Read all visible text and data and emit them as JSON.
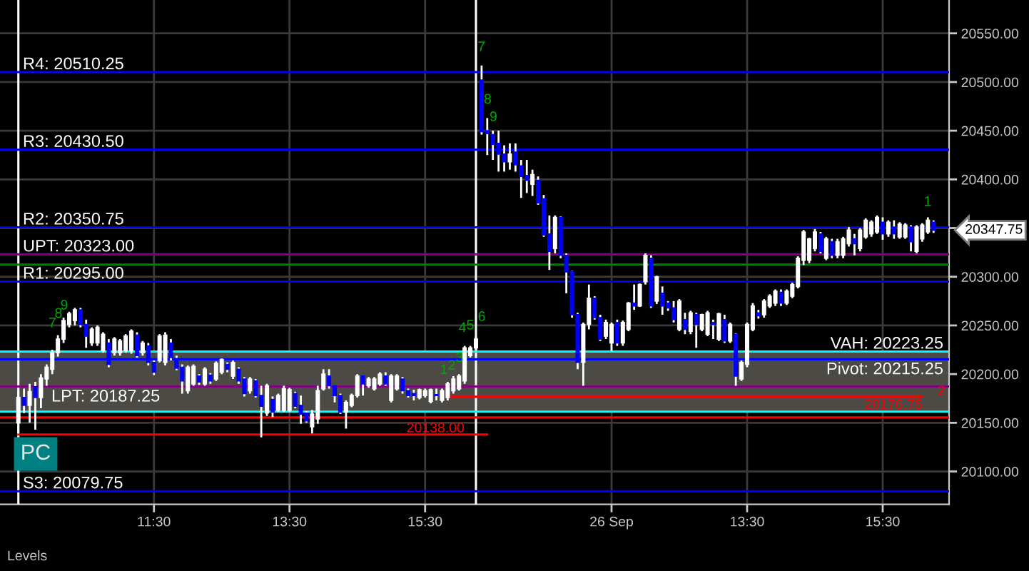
{
  "chart_data": {
    "type": "candlestick",
    "categories": [
      null,
      null,
      null,
      null,
      null,
      null,
      null,
      null,
      null,
      null,
      null,
      null,
      null,
      null,
      null,
      null,
      null,
      null,
      null,
      null,
      null,
      null,
      null,
      null,
      "11:30",
      null,
      null,
      null,
      null,
      null,
      null,
      null,
      null,
      null,
      null,
      null,
      null,
      null,
      null,
      null,
      null,
      null,
      null,
      null,
      null,
      null,
      null,
      null,
      "13:30",
      null,
      null,
      null,
      null,
      null,
      null,
      null,
      null,
      null,
      null,
      null,
      null,
      null,
      null,
      null,
      null,
      null,
      null,
      null,
      null,
      null,
      null,
      null,
      "15:30",
      null,
      null,
      null,
      null,
      null,
      null,
      null,
      null,
      null,
      null,
      null,
      null,
      null,
      null,
      null,
      null,
      null,
      null,
      null,
      null,
      null,
      null,
      null,
      null,
      null,
      null,
      null,
      null,
      null,
      null,
      null,
      null,
      "26 Sep",
      null,
      null,
      null,
      null,
      null,
      null,
      null,
      null,
      null,
      null,
      null,
      null,
      null,
      null,
      null,
      null,
      null,
      null,
      null,
      null,
      null,
      null,
      null,
      "13:30",
      null,
      null,
      null,
      null,
      null,
      null,
      null,
      null,
      null,
      null,
      null,
      null,
      null,
      null,
      null,
      null,
      null,
      null,
      null,
      null,
      null,
      null,
      null,
      "15:30",
      null,
      null,
      null,
      null,
      null,
      null,
      null,
      null,
      null
    ],
    "series": [
      {
        "color": "#ffffff",
        "ohlc": [
          [
            20150,
            20183,
            20139,
            20176
          ],
          [
            20176,
            20185,
            20160,
            20168
          ],
          [
            20168,
            20190,
            20150,
            20182
          ],
          [
            20187,
            20192,
            20143,
            20176
          ],
          [
            20176,
            20200,
            20165,
            20196
          ],
          [
            20195,
            20210,
            20188,
            20207
          ],
          [
            20205,
            20225,
            20200,
            20222
          ],
          [
            20222,
            20240,
            20218,
            20236
          ],
          [
            20236,
            20258,
            20232,
            20255
          ],
          [
            20251,
            20264,
            20248,
            20262
          ],
          [
            20255,
            20268,
            20250,
            20266
          ],
          [
            20266,
            20268,
            20248,
            20251
          ],
          [
            20251,
            20256,
            20227,
            20239
          ],
          [
            20232,
            20248,
            20229,
            20246
          ],
          [
            20232,
            20250,
            20229,
            20248
          ],
          [
            20224,
            20243,
            20222,
            20241
          ],
          [
            20232,
            20236,
            20207,
            20210
          ],
          [
            20222,
            20238,
            20219,
            20236
          ],
          [
            20222,
            20236,
            20219,
            20234
          ],
          [
            20224,
            20241,
            20222,
            20239
          ],
          [
            20224,
            20246,
            20221,
            20244
          ],
          [
            20240,
            20243,
            20217,
            20219
          ],
          [
            20222,
            20234,
            20219,
            20232
          ],
          [
            20229,
            20232,
            20209,
            20212
          ],
          [
            20212,
            20214,
            20199,
            20202
          ],
          [
            20214,
            20241,
            20212,
            20239
          ],
          [
            20212,
            20243,
            20209,
            20240
          ],
          [
            20232,
            20236,
            20214,
            20217
          ],
          [
            20216,
            20219,
            20204,
            20206
          ],
          [
            20207,
            20210,
            20180,
            20193
          ],
          [
            20183,
            20209,
            20180,
            20207
          ],
          [
            20190,
            20210,
            20188,
            20208
          ],
          [
            20198,
            20200,
            20189,
            20192
          ],
          [
            20190,
            20207,
            20188,
            20205
          ],
          [
            20199,
            20201,
            20190,
            20193
          ],
          [
            20195,
            20213,
            20193,
            20211
          ],
          [
            20202,
            20216,
            20200,
            20215
          ],
          [
            20210,
            20212,
            20202,
            20205
          ],
          [
            20198,
            20214,
            20195,
            20212
          ],
          [
            20205,
            20207,
            20190,
            20193
          ],
          [
            20195,
            20197,
            20177,
            20180
          ],
          [
            20183,
            20197,
            20180,
            20195
          ],
          [
            20193,
            20195,
            20176,
            20178
          ],
          [
            20178,
            20188,
            20135,
            20167
          ],
          [
            20160,
            20190,
            20157,
            20188
          ],
          [
            20174,
            20177,
            20156,
            20161
          ],
          [
            20163,
            20180,
            20161,
            20178
          ],
          [
            20163,
            20188,
            20161,
            20185
          ],
          [
            20163,
            20186,
            20161,
            20184
          ],
          [
            20180,
            20182,
            20165,
            20167
          ],
          [
            20168,
            20178,
            20149,
            20159
          ],
          [
            20160,
            20162,
            20150,
            20152
          ],
          [
            20146,
            20163,
            20139,
            20159
          ],
          [
            20154,
            20188,
            20149,
            20183
          ],
          [
            20185,
            20205,
            20183,
            20200
          ],
          [
            20198,
            20205,
            20185,
            20188
          ],
          [
            20188,
            20188,
            20171,
            20178
          ],
          [
            20178,
            20180,
            20159,
            20161
          ],
          [
            20161,
            20173,
            20144,
            20171
          ],
          [
            20168,
            20180,
            20166,
            20178
          ],
          [
            20178,
            20200,
            20176,
            20198
          ],
          [
            20198,
            20198,
            20178,
            20190
          ],
          [
            20188,
            20197,
            20186,
            20195
          ],
          [
            20185,
            20197,
            20183,
            20195
          ],
          [
            20190,
            20202,
            20188,
            20200
          ],
          [
            20198,
            20202,
            20188,
            20190
          ],
          [
            20173,
            20200,
            20171,
            20198
          ],
          [
            20185,
            20200,
            20183,
            20198
          ],
          [
            20195,
            20197,
            20180,
            20183
          ],
          [
            20183,
            20185,
            20176,
            20178
          ],
          [
            20180,
            20184,
            20173,
            20178
          ],
          [
            20176,
            20185,
            20174,
            20184
          ],
          [
            20178,
            20185,
            20176,
            20183
          ],
          [
            20172,
            20185,
            20170,
            20184
          ],
          [
            20179,
            20185,
            20173,
            20178
          ],
          [
            20173,
            20185,
            20171,
            20183
          ],
          [
            20176,
            20192,
            20173,
            20190
          ],
          [
            20183,
            20198,
            20180,
            20195
          ],
          [
            20185,
            20200,
            20183,
            20198
          ],
          [
            20193,
            20229,
            20190,
            20227
          ],
          [
            20219,
            20229,
            20217,
            20227
          ],
          [
            20227,
            20239,
            20224,
            20236
          ],
          [
            20502,
            20517,
            20446,
            20449
          ],
          [
            20450,
            20463,
            20425,
            20447
          ],
          [
            20446,
            20450,
            20420,
            20436
          ],
          [
            20437,
            20450,
            20408,
            20426
          ],
          [
            20426,
            20435,
            20408,
            20418
          ],
          [
            20418,
            20437,
            20410,
            20426
          ],
          [
            20428,
            20437,
            20408,
            20415
          ],
          [
            20414,
            20420,
            20381,
            20403
          ],
          [
            20404,
            20420,
            20386,
            20399
          ],
          [
            20395,
            20410,
            20383,
            20405
          ],
          [
            20399,
            20403,
            20374,
            20376
          ],
          [
            20380,
            20384,
            20341,
            20343
          ],
          [
            20344,
            20363,
            20307,
            20326
          ],
          [
            20329,
            20363,
            20324,
            20361
          ],
          [
            20361,
            20362,
            20319,
            20322
          ],
          [
            20322,
            20324,
            20283,
            20305
          ],
          [
            20305,
            20306,
            20258,
            20261
          ],
          [
            20261,
            20263,
            20205,
            20212
          ],
          [
            20212,
            20253,
            20188,
            20251
          ],
          [
            20251,
            20292,
            20246,
            20278
          ],
          [
            20278,
            20280,
            20256,
            20258
          ],
          [
            20258,
            20261,
            20234,
            20236
          ],
          [
            20239,
            20256,
            20236,
            20253
          ],
          [
            20232,
            20253,
            20224,
            20251
          ],
          [
            20253,
            20256,
            20229,
            20232
          ],
          [
            20232,
            20255,
            20229,
            20253
          ],
          [
            20246,
            20274,
            20244,
            20273
          ],
          [
            20273,
            20292,
            20266,
            20270
          ],
          [
            20270,
            20293,
            20269,
            20292
          ],
          [
            20295,
            20324,
            20292,
            20322
          ],
          [
            20319,
            20322,
            20268,
            20270
          ],
          [
            20275,
            20301,
            20272,
            20300
          ],
          [
            20283,
            20290,
            20261,
            20270
          ],
          [
            20273,
            20275,
            20265,
            20268
          ],
          [
            20268,
            20275,
            20253,
            20256
          ],
          [
            20246,
            20277,
            20244,
            20275
          ],
          [
            20256,
            20263,
            20241,
            20246
          ],
          [
            20244,
            20265,
            20241,
            20263
          ],
          [
            20261,
            20263,
            20227,
            20251
          ],
          [
            20246,
            20262,
            20244,
            20261
          ],
          [
            20241,
            20265,
            20239,
            20263
          ],
          [
            20253,
            20256,
            20236,
            20251
          ],
          [
            20236,
            20263,
            20234,
            20262
          ],
          [
            20256,
            20261,
            20232,
            20234
          ],
          [
            20234,
            20253,
            20232,
            20251
          ],
          [
            20241,
            20242,
            20188,
            20198
          ],
          [
            20195,
            20214,
            20193,
            20212
          ],
          [
            20210,
            20253,
            20207,
            20251
          ],
          [
            20246,
            20273,
            20244,
            20270
          ],
          [
            20263,
            20266,
            20257,
            20260
          ],
          [
            20261,
            20277,
            20258,
            20275
          ],
          [
            20270,
            20282,
            20268,
            20280
          ],
          [
            20273,
            20287,
            20270,
            20285
          ],
          [
            20284,
            20287,
            20270,
            20273
          ],
          [
            20273,
            20287,
            20271,
            20285
          ],
          [
            20280,
            20294,
            20278,
            20292
          ],
          [
            20290,
            20321,
            20288,
            20319
          ],
          [
            20317,
            20348,
            20312,
            20346
          ],
          [
            20317,
            20340,
            20314,
            20339
          ],
          [
            20329,
            20349,
            20326,
            20346
          ],
          [
            20344,
            20346,
            20324,
            20326
          ],
          [
            20319,
            20341,
            20317,
            20339
          ],
          [
            20336,
            20339,
            20319,
            20322
          ],
          [
            20322,
            20339,
            20319,
            20336
          ],
          [
            20322,
            20341,
            20319,
            20339
          ],
          [
            20334,
            20351,
            20331,
            20348
          ],
          [
            20339,
            20344,
            20322,
            20334
          ],
          [
            20329,
            20350,
            20326,
            20348
          ],
          [
            20341,
            20360,
            20339,
            20358
          ],
          [
            20344,
            20358,
            20341,
            20356
          ],
          [
            20346,
            20363,
            20344,
            20361
          ],
          [
            20356,
            20361,
            20338,
            20344
          ],
          [
            20344,
            20358,
            20341,
            20356
          ],
          [
            20351,
            20358,
            20339,
            20344
          ],
          [
            20341,
            20356,
            20339,
            20354
          ],
          [
            20341,
            20355,
            20339,
            20353
          ],
          [
            20351,
            20353,
            20326,
            20336
          ],
          [
            20326,
            20353,
            20324,
            20351
          ],
          [
            20339,
            20355,
            20336,
            20353
          ],
          [
            20346,
            20361,
            20344,
            20358
          ],
          [
            20356,
            20358,
            20345,
            20347.75
          ]
        ],
        "colors": [
          "#ffffff",
          "#0000ff",
          "#ffffff",
          "#0000ff",
          "#ffffff",
          "#ffffff",
          "#ffffff",
          "#ffffff",
          "#ffffff",
          "#ffffff",
          "#ffffff",
          "#0000ff",
          "#0000ff",
          "#ffffff",
          "#ffffff",
          "#ffffff",
          "#0000ff",
          "#ffffff",
          "#ffffff",
          "#ffffff",
          "#ffffff",
          "#0000ff",
          "#ffffff",
          "#0000ff",
          "#0000ff",
          "#ffffff",
          "#ffffff",
          "#0000ff",
          "#0000ff",
          "#0000ff",
          "#ffffff",
          "#ffffff",
          "#0000ff",
          "#ffffff",
          "#0000ff",
          "#ffffff",
          "#ffffff",
          "#0000ff",
          "#ffffff",
          "#0000ff",
          "#0000ff",
          "#ffffff",
          "#0000ff",
          "#0000ff",
          "#ffffff",
          "#0000ff",
          "#ffffff",
          "#ffffff",
          "#ffffff",
          "#0000ff",
          "#0000ff",
          "#0000ff",
          "#ffffff",
          "#ffffff",
          "#ffffff",
          "#0000ff",
          "#0000ff",
          "#0000ff",
          "#ffffff",
          "#ffffff",
          "#ffffff",
          "#0000ff",
          "#ffffff",
          "#ffffff",
          "#ffffff",
          "#0000ff",
          "#ffffff",
          "#ffffff",
          "#0000ff",
          "#0000ff",
          "#0000ff",
          "#ffffff",
          "#ffffff",
          "#ffffff",
          "#0000ff",
          "#ffffff",
          "#ffffff",
          "#ffffff",
          "#ffffff",
          "#ffffff",
          "#ffffff",
          "#ffffff",
          "#0000ff",
          "#0000ff",
          "#0000ff",
          "#0000ff",
          "#0000ff",
          "#ffffff",
          "#0000ff",
          "#0000ff",
          "#0000ff",
          "#ffffff",
          "#0000ff",
          "#0000ff",
          "#0000ff",
          "#ffffff",
          "#0000ff",
          "#0000ff",
          "#0000ff",
          "#0000ff",
          "#ffffff",
          "#ffffff",
          "#0000ff",
          "#0000ff",
          "#ffffff",
          "#ffffff",
          "#0000ff",
          "#ffffff",
          "#ffffff",
          "#0000ff",
          "#ffffff",
          "#ffffff",
          "#0000ff",
          "#ffffff",
          "#0000ff",
          "#0000ff",
          "#0000ff",
          "#ffffff",
          "#0000ff",
          "#ffffff",
          "#0000ff",
          "#ffffff",
          "#ffffff",
          "#0000ff",
          "#ffffff",
          "#0000ff",
          "#ffffff",
          "#0000ff",
          "#ffffff",
          "#ffffff",
          "#ffffff",
          "#0000ff",
          "#ffffff",
          "#ffffff",
          "#ffffff",
          "#0000ff",
          "#ffffff",
          "#ffffff",
          "#ffffff",
          "#ffffff",
          "#ffffff",
          "#ffffff",
          "#0000ff",
          "#ffffff",
          "#0000ff",
          "#ffffff",
          "#ffffff",
          "#ffffff",
          "#0000ff",
          "#ffffff",
          "#ffffff",
          "#ffffff",
          "#ffffff",
          "#0000ff",
          "#ffffff",
          "#0000ff",
          "#ffffff",
          "#ffffff",
          "#0000ff",
          "#ffffff",
          "#ffffff",
          "#ffffff",
          "#0000ff"
        ]
      },
      {
        "type": "line",
        "name": "20138.00",
        "color": "#ff0000",
        "values": [
          20138.0,
          20138.0,
          20138.0,
          20138.0,
          20138.0,
          20138.0,
          20138.0,
          20138.0,
          20138.0,
          20138.0,
          20138.0,
          20138.0,
          20138.0,
          20138.0,
          20138.0,
          20138.0,
          20138.0,
          20138.0,
          20138.0,
          20138.0,
          20138.0,
          20138.0,
          20138.0,
          20138.0,
          20138.0,
          20138.0,
          20138.0,
          20138.0,
          20138.0,
          20138.0,
          20138.0,
          20138.0,
          20138.0,
          20138.0,
          20138.0,
          20138.0,
          20138.0,
          20138.0,
          20138.0,
          20138.0,
          20138.0,
          20138.0,
          20138.0,
          20138.0,
          20138.0,
          20138.0,
          20138.0,
          20138.0,
          20138.0,
          20138.0,
          20138.0,
          20138.0,
          20138.0,
          20138.0,
          20138.0,
          20138.0,
          20138.0,
          20138.0,
          20138.0,
          20138.0,
          20138.0,
          20138.0,
          20138.0,
          20138.0,
          20138.0,
          20138.0,
          20138.0,
          20138.0,
          20138.0,
          20138.0,
          20138.0,
          20138.0,
          20138.0,
          20138.0,
          20138.0,
          20138.0,
          20138.0,
          20138.0,
          20138.0,
          20138.0,
          20138.0,
          20138.0,
          20138.0,
          20138.0,
          null,
          null,
          null,
          null,
          null,
          null,
          null,
          null,
          null,
          null,
          null,
          null,
          null,
          null,
          null,
          null,
          null,
          null,
          null,
          null,
          null,
          null,
          null,
          null,
          null,
          null,
          null,
          null,
          null,
          null,
          null,
          null,
          null,
          null,
          null,
          null,
          null,
          null,
          null,
          null,
          null,
          null,
          null,
          null,
          null,
          null,
          null,
          null,
          null,
          null,
          null,
          null,
          null,
          null,
          null,
          null,
          null,
          null,
          null,
          null,
          null,
          null,
          null,
          null,
          null,
          null,
          null,
          null,
          null,
          null,
          null,
          null,
          null,
          null,
          null,
          null,
          null,
          null,
          null
        ]
      },
      {
        "type": "line",
        "name": "20176.75",
        "color": "#ff0000",
        "values": [
          null,
          null,
          null,
          null,
          null,
          null,
          null,
          null,
          null,
          null,
          null,
          null,
          null,
          null,
          null,
          null,
          null,
          null,
          null,
          null,
          null,
          null,
          null,
          null,
          null,
          null,
          null,
          null,
          null,
          null,
          null,
          null,
          null,
          null,
          null,
          null,
          null,
          null,
          null,
          null,
          null,
          null,
          null,
          null,
          null,
          null,
          null,
          null,
          null,
          null,
          null,
          null,
          null,
          null,
          null,
          null,
          null,
          null,
          null,
          null,
          null,
          null,
          null,
          null,
          null,
          null,
          null,
          null,
          null,
          null,
          null,
          null,
          null,
          null,
          null,
          null,
          20176.75,
          20176.75,
          20176.75,
          20176.75,
          20176.75,
          20176.75,
          20176.75,
          20176.75,
          20176.75,
          20176.75,
          20176.75,
          20176.75,
          20176.75,
          20176.75,
          20176.75,
          20176.75,
          20176.75,
          20176.75,
          20176.75,
          20176.75,
          20176.75,
          20176.75,
          20176.75,
          20176.75,
          20176.75,
          20176.75,
          20176.75,
          20176.75,
          20176.75,
          20176.75,
          20176.75,
          20176.75,
          20176.75,
          20176.75,
          20176.75,
          20176.75,
          20176.75,
          20176.75,
          20176.75,
          20176.75,
          20176.75,
          20176.75,
          20176.75,
          20176.75,
          20176.75,
          20176.75,
          20176.75,
          20176.75,
          20176.75,
          20176.75,
          20176.75,
          20176.75,
          20176.75,
          20176.75,
          20176.75,
          20176.75,
          20176.75,
          20176.75,
          20176.75,
          20176.75,
          20176.75,
          20176.75,
          20176.75,
          20176.75,
          20176.75,
          20176.75,
          20176.75,
          20176.75,
          20176.75,
          20176.75,
          20176.75,
          20176.75,
          20176.75,
          20176.75,
          20176.75,
          20176.75,
          20176.75,
          20176.75,
          20176.75,
          20176.75,
          20176.75,
          20176.75,
          20176.75,
          20176.75,
          20176.75,
          null,
          null
        ]
      }
    ],
    "ylim": [
      20066.25,
      20584.25
    ],
    "yticks": [
      {
        "value": 20100,
        "label": "20100.00"
      },
      {
        "value": 20150,
        "label": "20150.00"
      },
      {
        "value": 20200,
        "label": "20200.00"
      },
      {
        "value": 20250,
        "label": "20250.00"
      },
      {
        "value": 20300,
        "label": "20300.00"
      },
      {
        "value": 20350,
        "label": null
      },
      {
        "value": 20400,
        "label": "20400.00"
      },
      {
        "value": 20450,
        "label": "20450.00"
      },
      {
        "value": 20500,
        "label": "20500.00"
      },
      {
        "value": 20550,
        "label": "20550.00"
      }
    ],
    "grid": true,
    "ref_lines": [
      {
        "axis": "y",
        "value": 20510.25,
        "label": "R4: 20510.25",
        "color": "#0000ff"
      },
      {
        "axis": "y",
        "value": 20430.5,
        "label": "R3: 20430.50",
        "color": "#0000ff"
      },
      {
        "axis": "y",
        "value": 20350.75,
        "label": "R2: 20350.75",
        "color": "#0000ff"
      },
      {
        "axis": "y",
        "value": 20323.0,
        "label": "UPT: 20323.00",
        "color": "#800080"
      },
      {
        "axis": "y",
        "value": 20312.5,
        "label": null,
        "color": "#008000"
      },
      {
        "axis": "y",
        "value": 20295.0,
        "label": "R1: 20295.00",
        "color": "#0000ff"
      },
      {
        "axis": "y",
        "value": 20223.25,
        "label": "VAH: 20223.25",
        "color": "#00ffff"
      },
      {
        "axis": "y",
        "value": 20215.25,
        "label": "Pivot: 20215.25",
        "color": "#0000ff"
      },
      {
        "axis": "y",
        "value": 20187.25,
        "label": "LPT: 20187.25",
        "color": "#800080"
      },
      {
        "axis": "y",
        "value": 20161.5,
        "label": null,
        "color": "#00ffff"
      },
      {
        "axis": "y",
        "value": 20155.5,
        "label": null,
        "color": "#ff0000"
      },
      {
        "axis": "y",
        "value": 20079.75,
        "label": "S3: 20079.75",
        "color": "#0000ff"
      }
    ],
    "bands": [
      {
        "axis": "y",
        "from": 20161.5,
        "to": 20223.25,
        "color": "#4b4a45"
      }
    ],
    "annotations": [
      "PC",
      "Levels",
      "20347.75",
      "7",
      "8",
      "9",
      "1",
      "2",
      "3",
      "4",
      "5",
      "6",
      "7",
      "8",
      "9",
      "1",
      "2"
    ]
  }
}
